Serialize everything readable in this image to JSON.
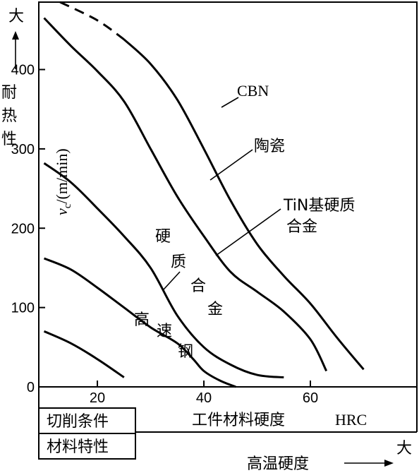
{
  "chart_data": {
    "type": "line",
    "xlabel": "工件材料硬度",
    "xunit": "HRC",
    "ylabel": "v",
    "ylabel_sub": "c",
    "ylabel_unit": "/(m/min)",
    "x_ticks": [
      20,
      40,
      60
    ],
    "y_ticks": [
      0,
      100,
      200,
      300,
      400
    ],
    "xlim": [
      9,
      80
    ],
    "ylim": [
      0,
      485
    ],
    "left_axis_label": [
      "耐",
      "热",
      "性"
    ],
    "left_axis_arrow_label": "大",
    "bottom_arrow_label": "高温硬度",
    "bottom_arrow_end": "大",
    "table_rows": [
      "切削条件",
      "材料特性"
    ],
    "series": [
      {
        "name": "CBN",
        "x": [
          13,
          20,
          25,
          30,
          35,
          40,
          45,
          50,
          55,
          60,
          65,
          70
        ],
        "y": [
          485,
          462,
          438,
          407,
          362,
          300,
          235,
          180,
          140,
          105,
          62,
          22
        ],
        "dashed_x_range": [
          19,
          26
        ]
      },
      {
        "name": "陶瓷",
        "x": [
          10,
          15,
          20,
          25,
          30,
          35,
          40,
          45,
          50,
          55,
          60,
          63
        ],
        "y": [
          465,
          430,
          398,
          360,
          300,
          240,
          190,
          145,
          120,
          95,
          60,
          20
        ]
      },
      {
        "name": "TiN基硬质合金",
        "x": [
          10,
          15,
          20,
          25,
          30,
          35,
          40,
          45,
          50,
          55,
          60,
          63
        ],
        "y": [
          465,
          430,
          398,
          360,
          300,
          240,
          190,
          145,
          120,
          95,
          60,
          20
        ]
      },
      {
        "name": "硬质合金",
        "x": [
          10,
          15,
          20,
          25,
          30,
          35,
          40,
          45,
          50,
          55
        ],
        "y": [
          282,
          258,
          225,
          190,
          150,
          90,
          50,
          28,
          15,
          12
        ]
      },
      {
        "name": "高速钢",
        "x": [
          10,
          15,
          20,
          25,
          30,
          35,
          38,
          40,
          43,
          46
        ],
        "y": [
          162,
          148,
          125,
          100,
          75,
          55,
          35,
          20,
          8,
          0
        ]
      },
      {
        "name": "",
        "x": [
          10,
          15,
          20,
          25
        ],
        "y": [
          70,
          55,
          35,
          12
        ]
      }
    ]
  },
  "labels": {
    "cbn": "CBN",
    "ceramic": "陶瓷",
    "tin_line1": "TiN基硬质",
    "tin_line2": "合金",
    "carbide": [
      "硬",
      "质",
      "合",
      "金"
    ],
    "hss": [
      "高",
      "速",
      "钢"
    ]
  }
}
